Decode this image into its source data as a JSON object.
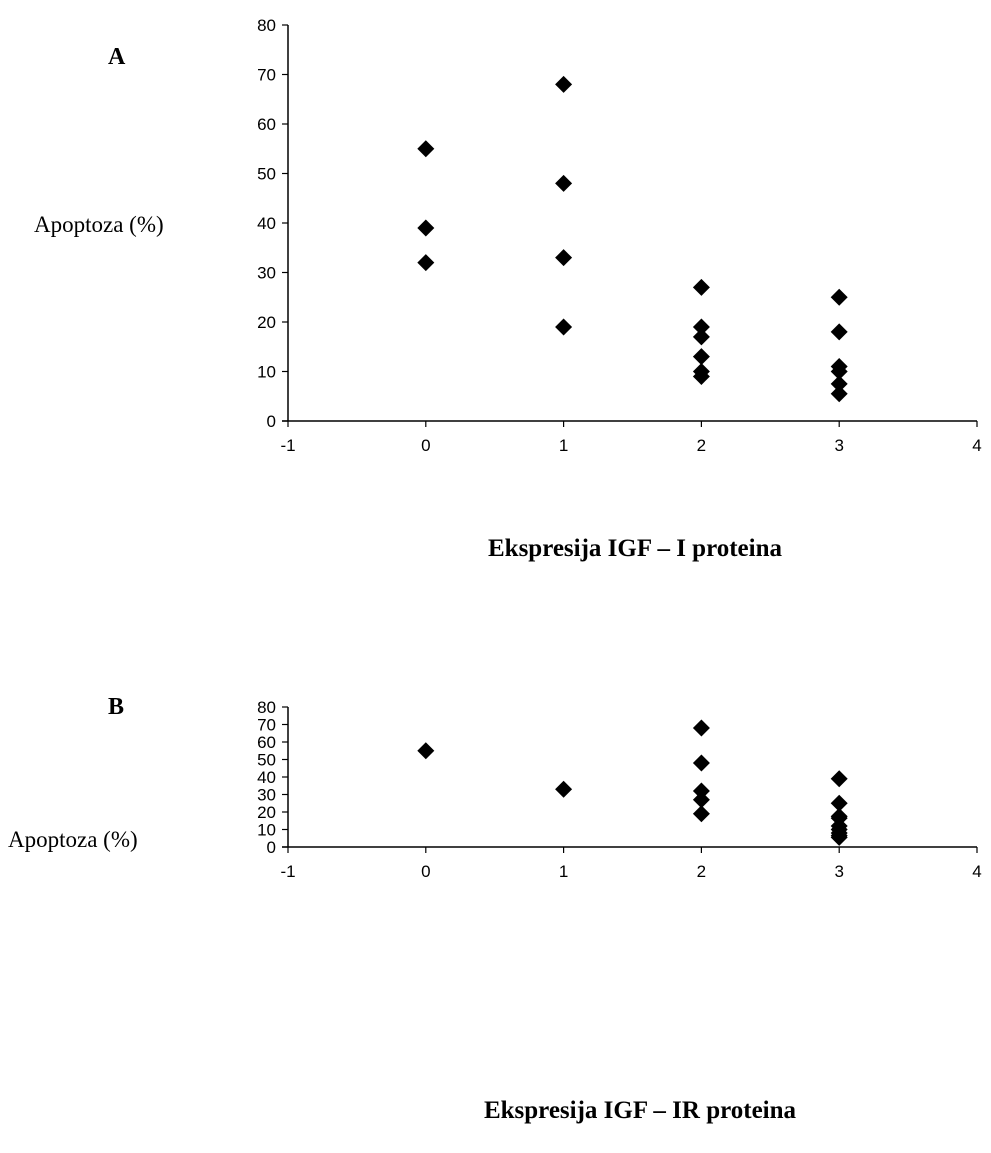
{
  "chart_data": [
    {
      "type": "scatter",
      "panel_label": "A",
      "ylabel": "Apoptoza (%)",
      "xlabel": "Ekspresija IGF – I proteina",
      "xlim": [
        -1,
        4
      ],
      "ylim": [
        0,
        80
      ],
      "xticks": [
        -1,
        0,
        1,
        2,
        3,
        4
      ],
      "yticks": [
        0,
        10,
        20,
        30,
        40,
        50,
        60,
        70,
        80
      ],
      "grid": false,
      "marker": "diamond",
      "marker_color": "#000000",
      "points": [
        {
          "x": 0,
          "y": 55
        },
        {
          "x": 0,
          "y": 39
        },
        {
          "x": 0,
          "y": 32
        },
        {
          "x": 1,
          "y": 68
        },
        {
          "x": 1,
          "y": 48
        },
        {
          "x": 1,
          "y": 33
        },
        {
          "x": 1,
          "y": 19
        },
        {
          "x": 2,
          "y": 27
        },
        {
          "x": 2,
          "y": 19
        },
        {
          "x": 2,
          "y": 17
        },
        {
          "x": 2,
          "y": 13
        },
        {
          "x": 2,
          "y": 10
        },
        {
          "x": 2,
          "y": 9
        },
        {
          "x": 3,
          "y": 25
        },
        {
          "x": 3,
          "y": 18
        },
        {
          "x": 3,
          "y": 11
        },
        {
          "x": 3,
          "y": 10
        },
        {
          "x": 3,
          "y": 7.5
        },
        {
          "x": 3,
          "y": 5.5
        }
      ]
    },
    {
      "type": "scatter",
      "panel_label": "B",
      "ylabel": "Apoptoza (%)",
      "xlabel": "Ekspresija IGF – IR proteina",
      "xlim": [
        -1,
        4
      ],
      "ylim": [
        0,
        80
      ],
      "xticks": [
        -1,
        0,
        1,
        2,
        3,
        4
      ],
      "yticks": [
        0,
        10,
        20,
        30,
        40,
        50,
        60,
        70,
        80
      ],
      "grid": false,
      "marker": "diamond",
      "marker_color": "#000000",
      "points": [
        {
          "x": 0,
          "y": 55
        },
        {
          "x": 1,
          "y": 33
        },
        {
          "x": 2,
          "y": 68
        },
        {
          "x": 2,
          "y": 48
        },
        {
          "x": 2,
          "y": 32
        },
        {
          "x": 2,
          "y": 27
        },
        {
          "x": 2,
          "y": 19
        },
        {
          "x": 3,
          "y": 39
        },
        {
          "x": 3,
          "y": 25
        },
        {
          "x": 3,
          "y": 17.5
        },
        {
          "x": 3,
          "y": 16.5
        },
        {
          "x": 3,
          "y": 12
        },
        {
          "x": 3,
          "y": 10
        },
        {
          "x": 3,
          "y": 8
        },
        {
          "x": 3,
          "y": 6.5
        },
        {
          "x": 3,
          "y": 5.5
        }
      ]
    }
  ]
}
